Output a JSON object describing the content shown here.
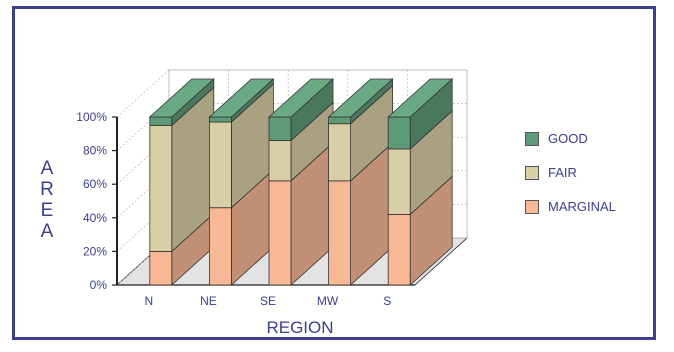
{
  "chart_data": {
    "type": "bar",
    "stacked": true,
    "three_d": true,
    "categories": [
      "N",
      "NE",
      "SE",
      "MW",
      "S"
    ],
    "series": [
      {
        "name": "MARGINAL",
        "values": [
          20,
          46,
          62,
          62,
          42
        ],
        "color": "#f8b896"
      },
      {
        "name": "FAIR",
        "values": [
          75,
          51,
          24,
          34,
          39
        ],
        "color": "#d9cfa6"
      },
      {
        "name": "GOOD",
        "values": [
          5,
          3,
          14,
          4,
          19
        ],
        "color": "#5f9a78"
      }
    ],
    "ytick_labels": [
      "0%",
      "20%",
      "40%",
      "60%",
      "80%",
      "100%"
    ],
    "ylim": [
      0,
      100
    ],
    "ylabel": "AREA",
    "xlabel": "REGION",
    "grid": true,
    "legend_position": "right",
    "legend_order": [
      "GOOD",
      "FAIR",
      "MARGINAL"
    ]
  },
  "colors": {
    "frame": "#3a3f8f",
    "text": "#3a3f8f",
    "axis": "#222222",
    "grid": "#b5b5b5"
  }
}
